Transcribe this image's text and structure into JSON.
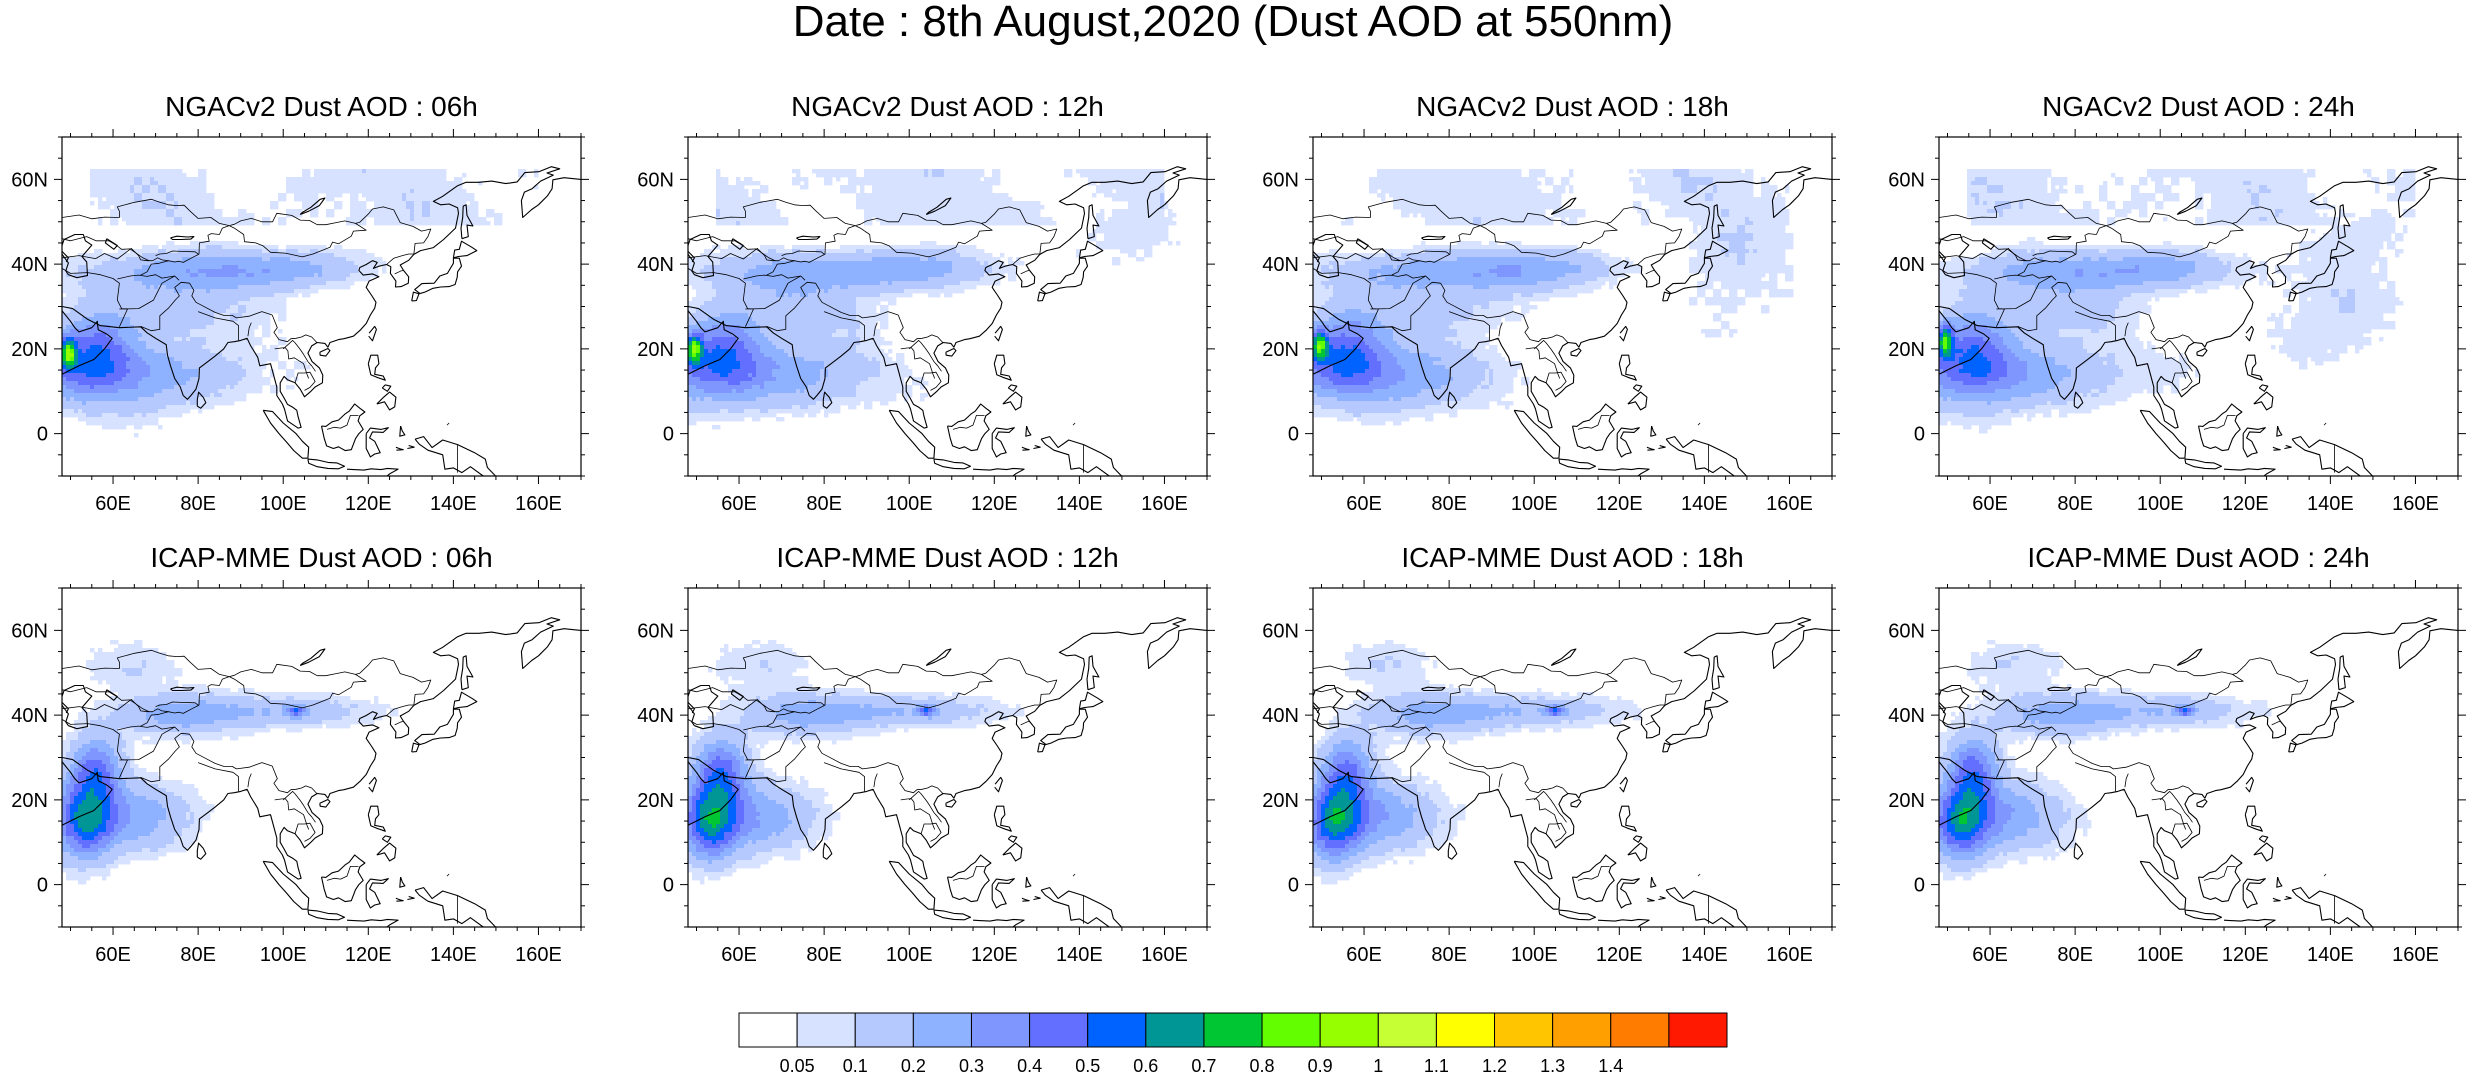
{
  "title": "Date : 8th August,2020 (Dust AOD at 550nm)",
  "panels": [
    {
      "title": "NGACv2 Dust AOD : 06h",
      "model": "ngac",
      "t": 0
    },
    {
      "title": "NGACv2 Dust AOD : 12h",
      "model": "ngac",
      "t": 1
    },
    {
      "title": "NGACv2 Dust AOD : 18h",
      "model": "ngac",
      "t": 2
    },
    {
      "title": "NGACv2 Dust AOD : 24h",
      "model": "ngac",
      "t": 3
    },
    {
      "title": "ICAP-MME Dust AOD : 06h",
      "model": "icap",
      "t": 0
    },
    {
      "title": "ICAP-MME Dust AOD : 12h",
      "model": "icap",
      "t": 1
    },
    {
      "title": "ICAP-MME Dust AOD : 18h",
      "model": "icap",
      "t": 2
    },
    {
      "title": "ICAP-MME Dust AOD : 24h",
      "model": "icap",
      "t": 3
    }
  ],
  "map_extent": {
    "lon": [
      48,
      170
    ],
    "lat": [
      -10,
      70
    ]
  },
  "lat_ticks": [
    {
      "v": 60,
      "label": "60N"
    },
    {
      "v": 40,
      "label": "40N"
    },
    {
      "v": 20,
      "label": "20N"
    },
    {
      "v": 0,
      "label": "0"
    }
  ],
  "lon_ticks": [
    {
      "v": 60,
      "label": "60E"
    },
    {
      "v": 80,
      "label": "80E"
    },
    {
      "v": 100,
      "label": "100E"
    },
    {
      "v": 120,
      "label": "120E"
    },
    {
      "v": 140,
      "label": "140E"
    },
    {
      "v": 160,
      "label": "160E"
    }
  ],
  "colorbar": {
    "colors": [
      "#ffffff",
      "#d6e2ff",
      "#b5c9ff",
      "#8eb2ff",
      "#7f96ff",
      "#6370ff",
      "#0063ff",
      "#009696",
      "#00c633",
      "#63ff00",
      "#96ff00",
      "#c6ff33",
      "#ffff00",
      "#ffc600",
      "#ffa000",
      "#ff7c00",
      "#ff1900"
    ],
    "labels": [
      "0.05",
      "0.1",
      "0.2",
      "0.3",
      "0.4",
      "0.5",
      "0.6",
      "0.7",
      "0.8",
      "0.9",
      "1",
      "1.1",
      "1.2",
      "1.3",
      "1.4"
    ]
  }
}
